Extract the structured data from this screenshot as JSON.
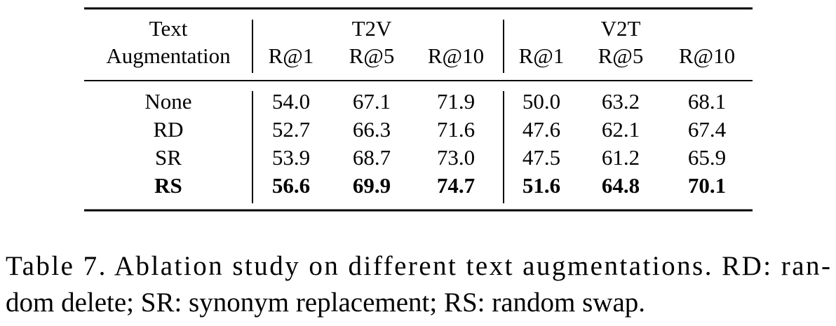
{
  "table": {
    "corner": [
      "Text",
      "Augmentation"
    ],
    "groups": [
      "T2V",
      "V2T"
    ],
    "columns": [
      "R@1",
      "R@5",
      "R@10",
      "R@1",
      "R@5",
      "R@10"
    ],
    "rows": [
      [
        "None",
        "54.0",
        "67.1",
        "71.9",
        "50.0",
        "63.2",
        "68.1"
      ],
      [
        "RD",
        "52.7",
        "66.3",
        "71.6",
        "47.6",
        "62.1",
        "67.4"
      ],
      [
        "SR",
        "53.9",
        "68.7",
        "73.0",
        "47.5",
        "61.2",
        "65.9"
      ],
      [
        "RS",
        "56.6",
        "69.9",
        "74.7",
        "51.6",
        "64.8",
        "70.1"
      ]
    ]
  },
  "caption": [
    "Table 7. Ablation study on different text augmentations. RD: ran-",
    "dom delete; SR: synonym replacement; RS: random swap."
  ]
}
